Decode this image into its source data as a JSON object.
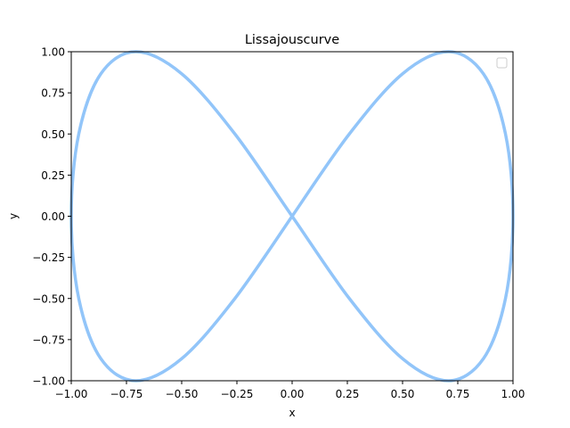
{
  "chart_data": {
    "type": "line",
    "title": "Lissajouscurve",
    "xlabel": "x",
    "ylabel": "y",
    "xlim": [
      -1.0,
      1.0
    ],
    "ylim": [
      -1.0,
      1.0
    ],
    "x_ticks": [
      "−1.00",
      "−0.75",
      "−0.50",
      "−0.25",
      "0.00",
      "0.25",
      "0.50",
      "0.75",
      "1.00"
    ],
    "y_ticks": [
      "−1.00",
      "−0.75",
      "−0.50",
      "−0.25",
      "0.00",
      "0.25",
      "0.50",
      "0.75",
      "1.00"
    ],
    "grid": false,
    "legend": {
      "placement": "top-right",
      "entries": []
    },
    "series": [
      {
        "line_color": "#92c5f9",
        "x": [
          0.0,
          0.259,
          0.5,
          0.707,
          0.866,
          0.966,
          1.0,
          0.966,
          0.866,
          0.707,
          0.5,
          0.259,
          0.0,
          -0.259,
          -0.5,
          -0.707,
          -0.866,
          -0.966,
          -1.0,
          -0.966,
          -0.866,
          -0.707,
          -0.5,
          -0.259,
          0.0
        ],
        "y": [
          0.0,
          0.5,
          0.866,
          1.0,
          0.866,
          0.5,
          0.0,
          -0.5,
          -0.866,
          -1.0,
          -0.866,
          -0.5,
          0.0,
          0.5,
          0.866,
          1.0,
          0.866,
          0.5,
          0.0,
          -0.5,
          -0.866,
          -1.0,
          -0.866,
          -0.5,
          0.0
        ]
      }
    ]
  }
}
